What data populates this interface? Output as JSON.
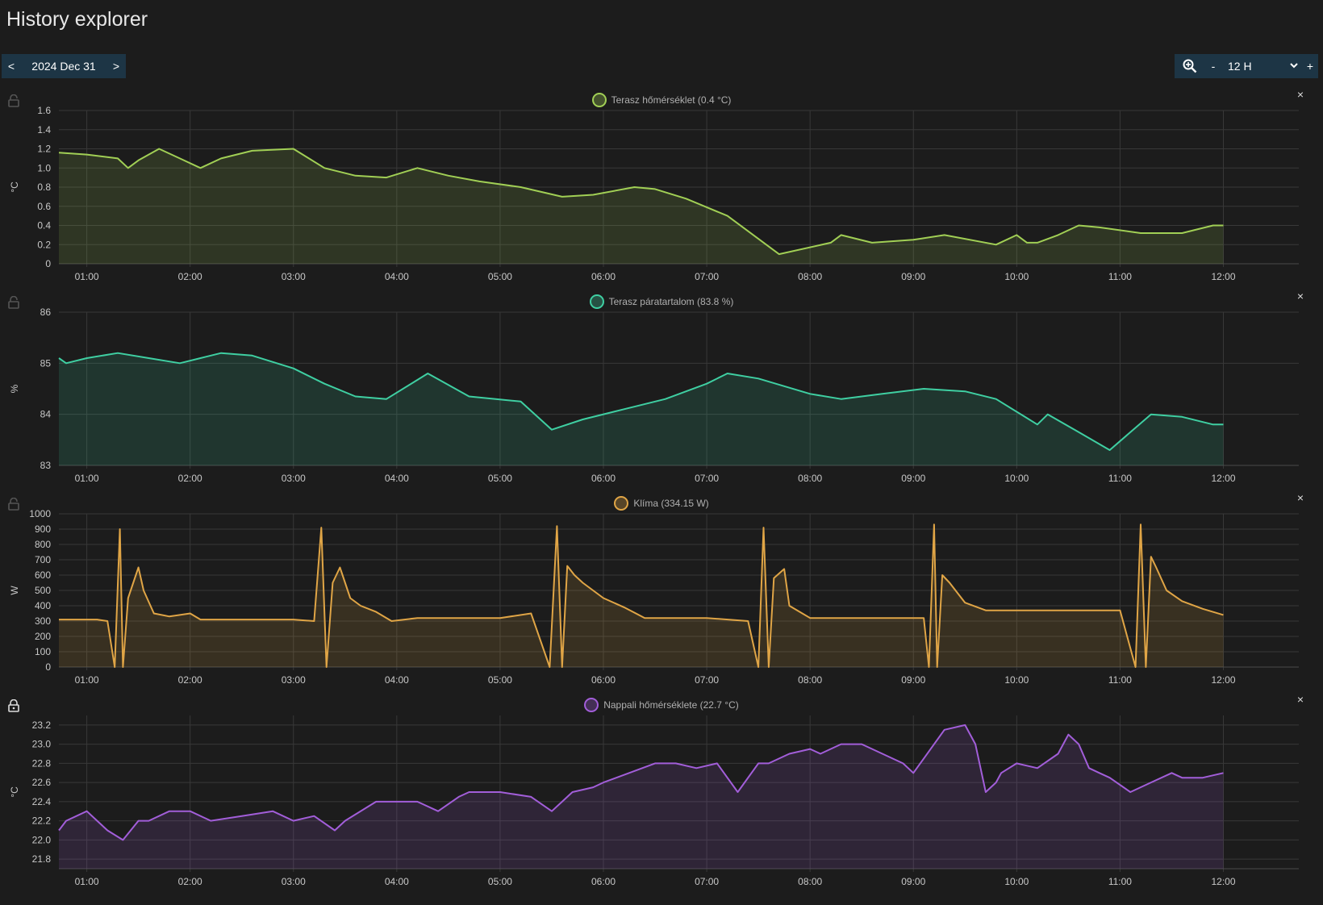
{
  "page": {
    "title": "History explorer"
  },
  "date_nav": {
    "prev": "<",
    "date": "2024 Dec 31",
    "next": ">"
  },
  "zoom": {
    "minus": "-",
    "range": "12 H",
    "plus": "+"
  },
  "x_ticks": [
    "01:00",
    "02:00",
    "03:00",
    "04:00",
    "05:00",
    "06:00",
    "07:00",
    "08:00",
    "09:00",
    "10:00",
    "11:00",
    "12:00"
  ],
  "panels": [
    {
      "legend": "Terasz hőmérséklet (0.4 °C)",
      "unit": "°C",
      "color": "#a1cf55",
      "close": "×",
      "locked": false
    },
    {
      "legend": "Terasz páratartalom (83.8 %)",
      "unit": "%",
      "color": "#3fcfa2",
      "close": "×",
      "locked": false
    },
    {
      "legend": "Klíma (334.15 W)",
      "unit": "W",
      "color": "#e0a546",
      "close": "×",
      "locked": false
    },
    {
      "legend": "Nappali hőmérséklete (22.7 °C)",
      "unit": "°C",
      "color": "#a25ed9",
      "close": "×",
      "locked": true
    }
  ],
  "chart_data": [
    {
      "type": "area",
      "series": [
        {
          "name": "Terasz hőmérséklet",
          "color": "#a1cf55"
        }
      ],
      "ylabel": "°C",
      "ylim": [
        0,
        1.6
      ],
      "yticks": [
        "0",
        "0.2",
        "0.4",
        "0.6",
        "0.8",
        "1.0",
        "1.2",
        "1.4",
        "1.6"
      ],
      "xlim": [
        0.73,
        12.73
      ],
      "x": [
        0.7,
        1.0,
        1.3,
        1.4,
        1.5,
        1.7,
        1.9,
        2.1,
        2.3,
        2.6,
        3.0,
        3.3,
        3.6,
        3.9,
        4.2,
        4.5,
        4.8,
        5.2,
        5.6,
        5.9,
        6.3,
        6.5,
        6.8,
        7.2,
        7.7,
        8.2,
        8.3,
        8.6,
        9.0,
        9.3,
        9.8,
        10.0,
        10.1,
        10.2,
        10.4,
        10.6,
        10.8,
        11.2,
        11.6,
        11.9,
        12.0
      ],
      "y": [
        1.16,
        1.14,
        1.1,
        1.0,
        1.08,
        1.2,
        1.1,
        1.0,
        1.1,
        1.18,
        1.2,
        1.0,
        0.92,
        0.9,
        1.0,
        0.92,
        0.86,
        0.8,
        0.7,
        0.72,
        0.8,
        0.78,
        0.68,
        0.5,
        0.1,
        0.22,
        0.3,
        0.22,
        0.25,
        0.3,
        0.2,
        0.3,
        0.22,
        0.22,
        0.3,
        0.4,
        0.38,
        0.32,
        0.32,
        0.4,
        0.4
      ]
    },
    {
      "type": "area",
      "series": [
        {
          "name": "Terasz páratartalom",
          "color": "#3fcfa2"
        }
      ],
      "ylabel": "%",
      "ylim": [
        83,
        86
      ],
      "yticks": [
        "83",
        "84",
        "85",
        "86"
      ],
      "xlim": [
        0.73,
        12.73
      ],
      "x": [
        0.7,
        0.8,
        1.0,
        1.3,
        1.6,
        1.9,
        2.1,
        2.3,
        2.6,
        3.0,
        3.3,
        3.6,
        3.9,
        4.3,
        4.7,
        5.2,
        5.5,
        5.8,
        6.2,
        6.6,
        7.0,
        7.2,
        7.5,
        8.0,
        8.3,
        8.7,
        9.1,
        9.5,
        9.8,
        10.2,
        10.3,
        10.6,
        10.9,
        11.3,
        11.6,
        11.9,
        12.0
      ],
      "y": [
        85.1,
        85.0,
        85.1,
        85.2,
        85.1,
        85.0,
        85.1,
        85.2,
        85.15,
        84.9,
        84.6,
        84.35,
        84.3,
        84.8,
        84.35,
        84.25,
        83.7,
        83.9,
        84.1,
        84.3,
        84.6,
        84.8,
        84.7,
        84.4,
        84.3,
        84.4,
        84.5,
        84.45,
        84.3,
        83.8,
        84.0,
        83.65,
        83.3,
        84.0,
        83.95,
        83.8,
        83.8
      ]
    },
    {
      "type": "area",
      "series": [
        {
          "name": "Klíma",
          "color": "#e0a546"
        }
      ],
      "ylabel": "W",
      "ylim": [
        0,
        1000
      ],
      "yticks": [
        "0",
        "100",
        "200",
        "300",
        "400",
        "500",
        "600",
        "700",
        "800",
        "900",
        "1000"
      ],
      "xlim": [
        0.73,
        12.73
      ],
      "x": [
        0.7,
        1.1,
        1.2,
        1.27,
        1.32,
        1.35,
        1.4,
        1.5,
        1.55,
        1.65,
        1.8,
        2.0,
        2.1,
        2.3,
        3.0,
        3.2,
        3.27,
        3.32,
        3.38,
        3.45,
        3.55,
        3.65,
        3.8,
        3.95,
        4.2,
        4.5,
        5.0,
        5.3,
        5.48,
        5.55,
        5.6,
        5.65,
        5.72,
        5.8,
        6.0,
        6.2,
        6.4,
        7.0,
        7.4,
        7.5,
        7.55,
        7.6,
        7.65,
        7.75,
        7.8,
        8.0,
        8.5,
        9.1,
        9.15,
        9.2,
        9.23,
        9.28,
        9.35,
        9.5,
        9.7,
        10.0,
        10.5,
        11.0,
        11.15,
        11.2,
        11.25,
        11.3,
        11.35,
        11.45,
        11.6,
        11.8,
        12.0
      ],
      "y": [
        310,
        310,
        300,
        0,
        900,
        0,
        450,
        650,
        500,
        350,
        330,
        350,
        310,
        310,
        310,
        300,
        910,
        0,
        550,
        650,
        450,
        400,
        360,
        300,
        320,
        320,
        320,
        350,
        0,
        920,
        0,
        660,
        600,
        550,
        450,
        390,
        320,
        320,
        300,
        0,
        910,
        0,
        580,
        640,
        400,
        320,
        320,
        320,
        0,
        930,
        0,
        600,
        550,
        420,
        370,
        370,
        370,
        370,
        0,
        930,
        0,
        720,
        650,
        500,
        430,
        380,
        340
      ]
    },
    {
      "type": "area",
      "series": [
        {
          "name": "Nappali hőmérséklete",
          "color": "#a25ed9"
        }
      ],
      "ylabel": "°C",
      "ylim": [
        21.7,
        23.3
      ],
      "yticks": [
        "21.8",
        "22.0",
        "22.2",
        "22.4",
        "22.6",
        "22.8",
        "23.0",
        "23.2"
      ],
      "xlim": [
        0.73,
        12.73
      ],
      "x": [
        0.7,
        0.8,
        1.0,
        1.1,
        1.2,
        1.35,
        1.5,
        1.6,
        1.8,
        2.0,
        2.2,
        2.5,
        2.8,
        3.0,
        3.2,
        3.4,
        3.5,
        3.8,
        4.2,
        4.4,
        4.6,
        4.7,
        4.8,
        5.0,
        5.3,
        5.5,
        5.6,
        5.7,
        5.9,
        6.0,
        6.5,
        6.7,
        6.9,
        7.1,
        7.3,
        7.5,
        7.6,
        7.8,
        8.0,
        8.1,
        8.3,
        8.5,
        8.9,
        9.0,
        9.1,
        9.3,
        9.5,
        9.6,
        9.7,
        9.8,
        9.85,
        10.0,
        10.2,
        10.4,
        10.5,
        10.6,
        10.7,
        10.8,
        10.9,
        11.1,
        11.3,
        11.5,
        11.6,
        11.8,
        12.0
      ],
      "y": [
        22.1,
        22.2,
        22.3,
        22.2,
        22.1,
        22.0,
        22.2,
        22.2,
        22.3,
        22.3,
        22.2,
        22.25,
        22.3,
        22.2,
        22.25,
        22.1,
        22.2,
        22.4,
        22.4,
        22.3,
        22.45,
        22.5,
        22.5,
        22.5,
        22.45,
        22.3,
        22.4,
        22.5,
        22.55,
        22.6,
        22.8,
        22.8,
        22.75,
        22.8,
        22.5,
        22.8,
        22.8,
        22.9,
        22.95,
        22.9,
        23.0,
        23.0,
        22.8,
        22.7,
        22.85,
        23.15,
        23.2,
        23.0,
        22.5,
        22.6,
        22.7,
        22.8,
        22.75,
        22.9,
        23.1,
        23.0,
        22.75,
        22.7,
        22.65,
        22.5,
        22.6,
        22.7,
        22.65,
        22.65,
        22.7
      ]
    }
  ]
}
